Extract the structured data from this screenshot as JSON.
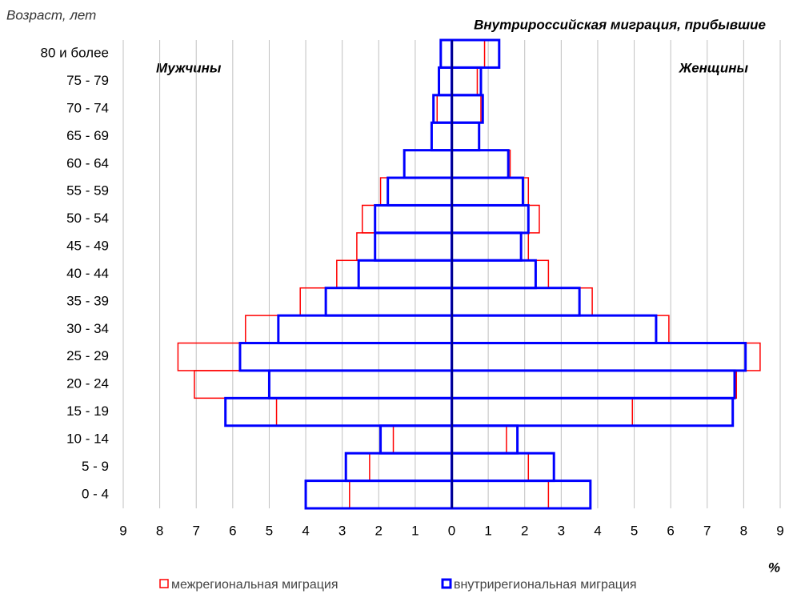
{
  "chart_data": {
    "type": "pyramid",
    "title": "Внутрироссийская миграция, прибывшие",
    "y_label": "Возраст, лет",
    "x_label": "%",
    "left_label": "Мужчины",
    "right_label": "Женщины",
    "categories": [
      "0 - 4",
      "5 - 9",
      "10 - 14",
      "15 - 19",
      "20 - 24",
      "25 - 29",
      "30 - 34",
      "35 - 39",
      "40 - 44",
      "45 - 49",
      "50 - 54",
      "55 - 59",
      "60 - 64",
      "65 - 69",
      "70 - 74",
      "75 - 79",
      "80 и более"
    ],
    "series": [
      {
        "name": "межрегиональная миграция",
        "color": "#ff0000",
        "male": [
          -2.8,
          -2.25,
          -1.6,
          -4.8,
          -7.05,
          -7.5,
          -5.65,
          -4.15,
          -3.15,
          -2.6,
          -2.45,
          -1.95,
          -1.3,
          -0.55,
          -0.4,
          -0.35,
          -0.3
        ],
        "female": [
          2.65,
          2.1,
          1.5,
          4.95,
          7.8,
          8.45,
          5.95,
          3.85,
          2.65,
          2.1,
          2.4,
          2.1,
          1.6,
          0.75,
          0.8,
          0.7,
          0.9
        ]
      },
      {
        "name": "внутрирегиональная миграция",
        "color": "#0000ff",
        "male": [
          -4.0,
          -2.9,
          -1.95,
          -6.2,
          -5.0,
          -5.8,
          -4.75,
          -3.45,
          -2.55,
          -2.1,
          -2.1,
          -1.75,
          -1.3,
          -0.55,
          -0.5,
          -0.35,
          -0.3
        ],
        "female": [
          3.8,
          2.8,
          1.8,
          7.7,
          7.75,
          8.05,
          5.6,
          3.5,
          2.3,
          1.9,
          2.1,
          1.95,
          1.55,
          0.75,
          0.85,
          0.8,
          1.3
        ]
      }
    ],
    "xlim": [
      -9,
      9
    ],
    "xticks": [
      {
        "value": -9,
        "label": "9"
      },
      {
        "value": -8,
        "label": "8"
      },
      {
        "value": -7,
        "label": "7"
      },
      {
        "value": -6,
        "label": "6"
      },
      {
        "value": -5,
        "label": "5"
      },
      {
        "value": -4,
        "label": "4"
      },
      {
        "value": -3,
        "label": "3"
      },
      {
        "value": -2,
        "label": "2"
      },
      {
        "value": -1,
        "label": "1"
      },
      0,
      1,
      2,
      3,
      4,
      5,
      6,
      7,
      8,
      9
    ],
    "grid": true
  }
}
